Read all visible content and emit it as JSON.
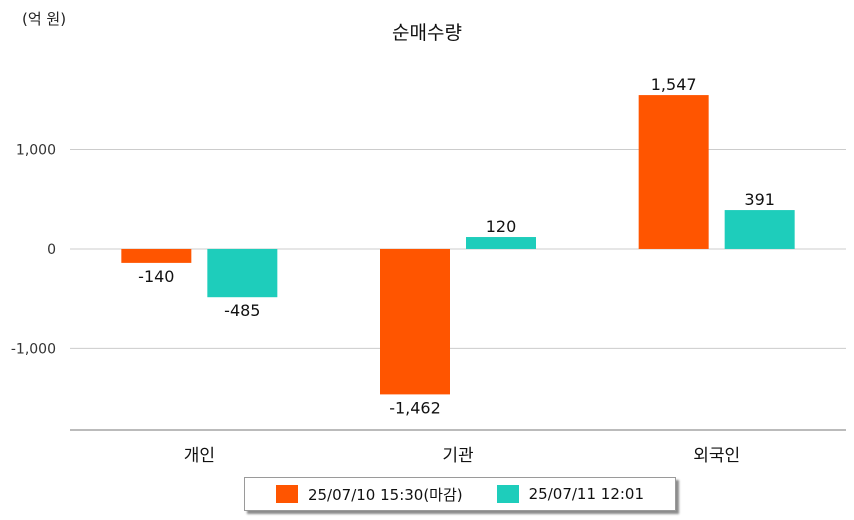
{
  "unit_label": "(억 원)",
  "chart_data": {
    "type": "bar",
    "title": "순매수량",
    "xlabel": "",
    "ylabel": "",
    "categories": [
      "개인",
      "기관",
      "외국인"
    ],
    "series": [
      {
        "name": "25/07/10 15:30(마감)",
        "color": "#ff5500",
        "values": [
          -140,
          -1462,
          1547
        ],
        "labels": [
          "-140",
          "-1,462",
          "1,547"
        ]
      },
      {
        "name": "25/07/11 12:01",
        "color": "#1ecdbb",
        "values": [
          -485,
          120,
          391
        ],
        "labels": [
          "-485",
          "120",
          "391"
        ]
      }
    ],
    "yticks": [
      1000,
      0,
      -1000
    ],
    "ytick_labels": [
      "1,000",
      "0",
      "-1,000"
    ],
    "ylim": [
      -1820,
      1950
    ],
    "grid": true,
    "legend": "bottom"
  }
}
